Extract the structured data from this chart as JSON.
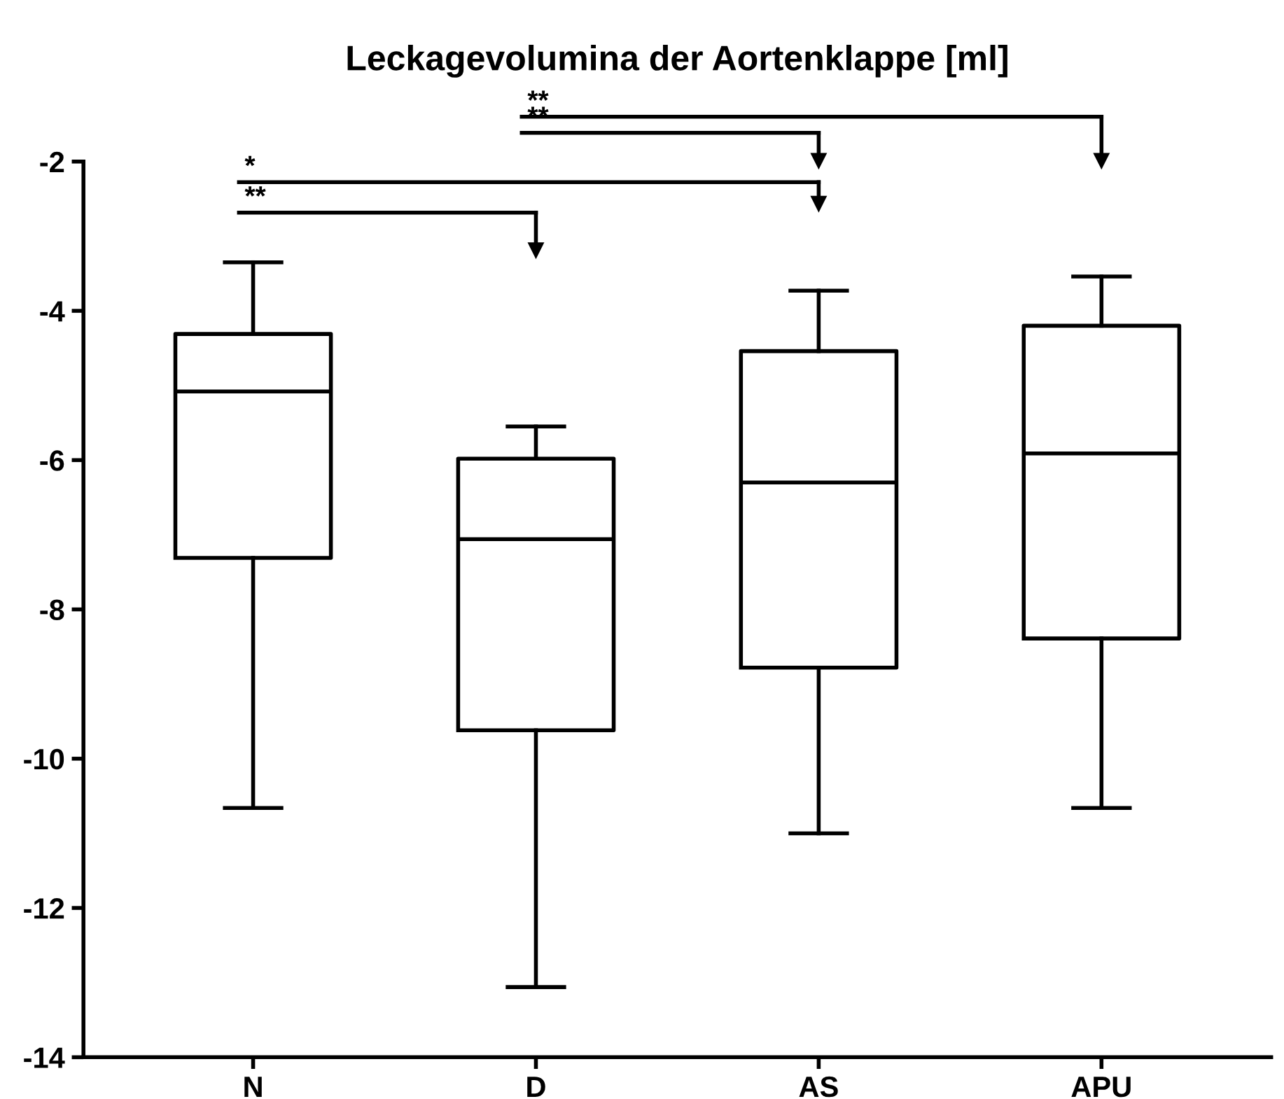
{
  "chart_data": {
    "type": "box",
    "title": "Leckagevolumina der Aortenklappe [ml]",
    "categories": [
      "N",
      "D",
      "AS",
      "APU"
    ],
    "boxes": [
      {
        "low": -10.66,
        "q1": -7.31,
        "median": -5.08,
        "q3": -4.31,
        "high": -3.35
      },
      {
        "low": -13.06,
        "q1": -9.62,
        "median": -7.06,
        "q3": -5.98,
        "high": -5.55
      },
      {
        "low": -11.0,
        "q1": -8.78,
        "median": -6.3,
        "q3": -4.54,
        "high": -3.73
      },
      {
        "low": -10.66,
        "q1": -8.39,
        "median": -5.91,
        "q3": -4.2,
        "high": -3.54
      }
    ],
    "ylim": [
      -14,
      -2
    ],
    "yticks": [
      -14,
      -12,
      -10,
      -8,
      -6,
      -4,
      -2
    ],
    "annotations": [
      "**",
      "*",
      "**",
      "**"
    ],
    "grid": false
  }
}
